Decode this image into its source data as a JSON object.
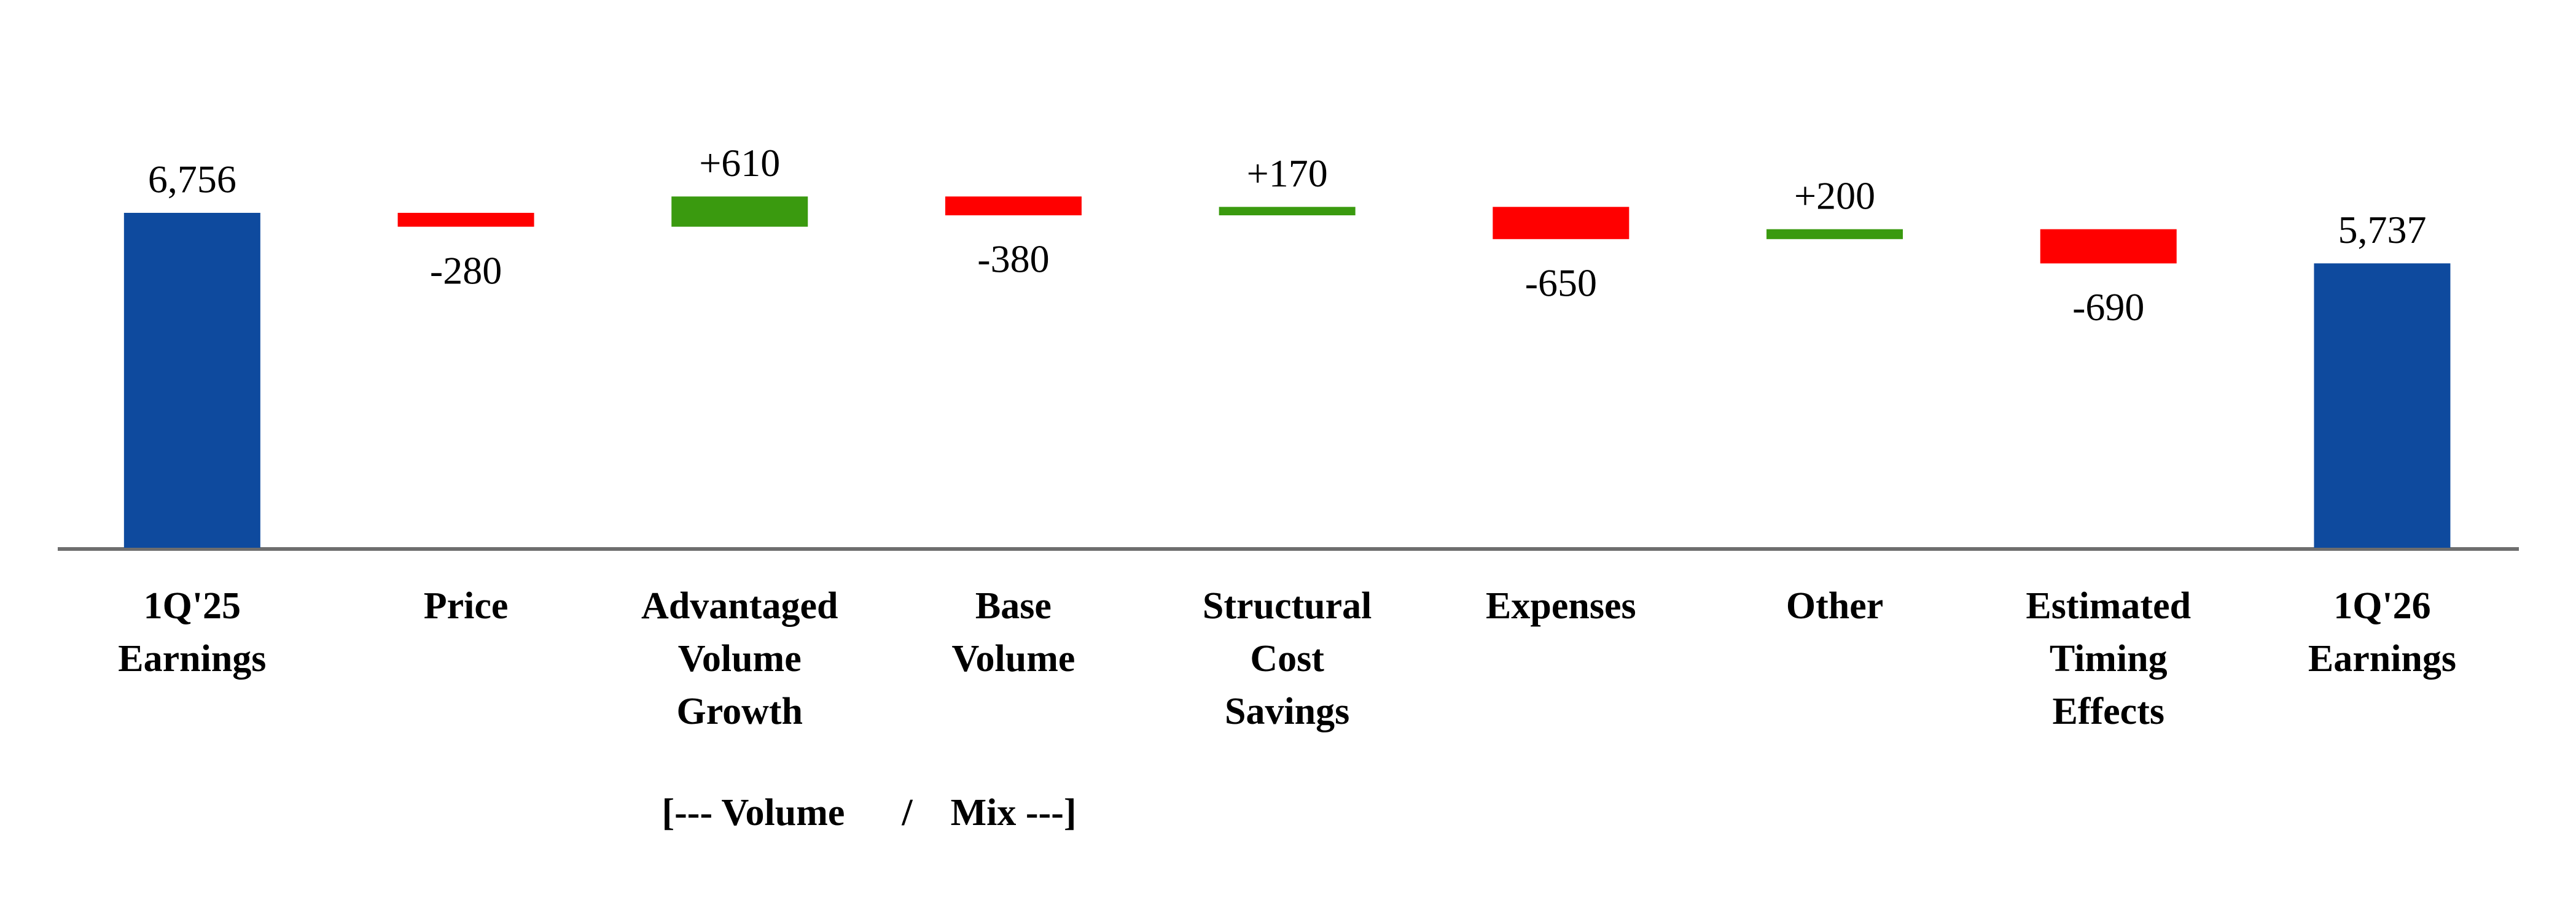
{
  "chart_data": {
    "type": "waterfall",
    "categories": [
      "1Q'25 Earnings",
      "Price",
      "Advantaged Volume Growth",
      "Base Volume",
      "Structural Cost Savings",
      "Expenses",
      "Other",
      "Estimated Timing Effects",
      "1Q'26 Earnings"
    ],
    "values": [
      6756,
      -280,
      610,
      -380,
      170,
      -650,
      200,
      -690,
      5737
    ],
    "value_labels": [
      "6,756",
      "-280",
      "+610",
      "-380",
      "+170",
      "-650",
      "+200",
      "-690",
      "5,737"
    ],
    "totals": [
      true,
      false,
      false,
      false,
      false,
      false,
      false,
      false,
      true
    ],
    "colors": {
      "total": "#0e4a9e",
      "increase": "#3a9a0f",
      "decrease": "#ff0000"
    },
    "ylim": [
      0,
      11000
    ],
    "annotation": "[--- Volume      /    Mix ---]"
  }
}
